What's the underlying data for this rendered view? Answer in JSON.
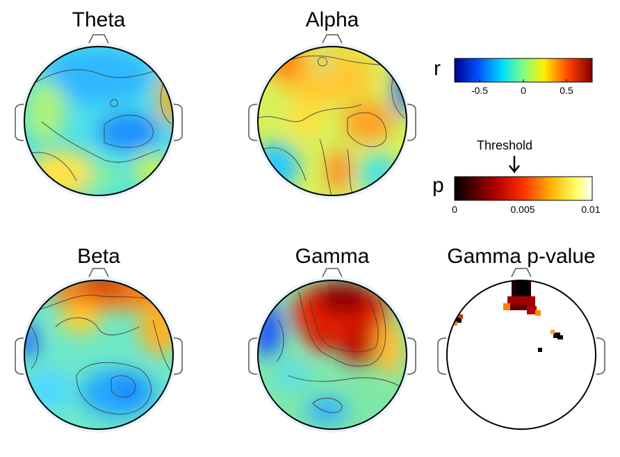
{
  "panels": {
    "theta": "Theta",
    "alpha": "Alpha",
    "beta": "Beta",
    "gamma": "Gamma",
    "gamma_p": "Gamma p-value"
  },
  "colorbar_r": {
    "label": "r",
    "ticks": [
      "-0.5",
      "0",
      "0.5"
    ],
    "range": [
      -0.8,
      0.8
    ],
    "colormap": "jet"
  },
  "colorbar_p": {
    "label": "p",
    "ticks": [
      "0",
      "0.005",
      "0.01"
    ],
    "range": [
      0,
      0.01
    ],
    "colormap": "hot",
    "threshold_label": "Threshold",
    "threshold_value": 0.0045
  },
  "colors": {
    "head_outline": "#000000",
    "contour": "#404040",
    "jet": [
      "#00008f",
      "#0050ff",
      "#00dfff",
      "#7fff7f",
      "#ffef00",
      "#ff4000",
      "#800000"
    ],
    "hot": [
      "#000000",
      "#b00000",
      "#ff4000",
      "#ffb000",
      "#ffff60",
      "#ffffff"
    ]
  }
}
